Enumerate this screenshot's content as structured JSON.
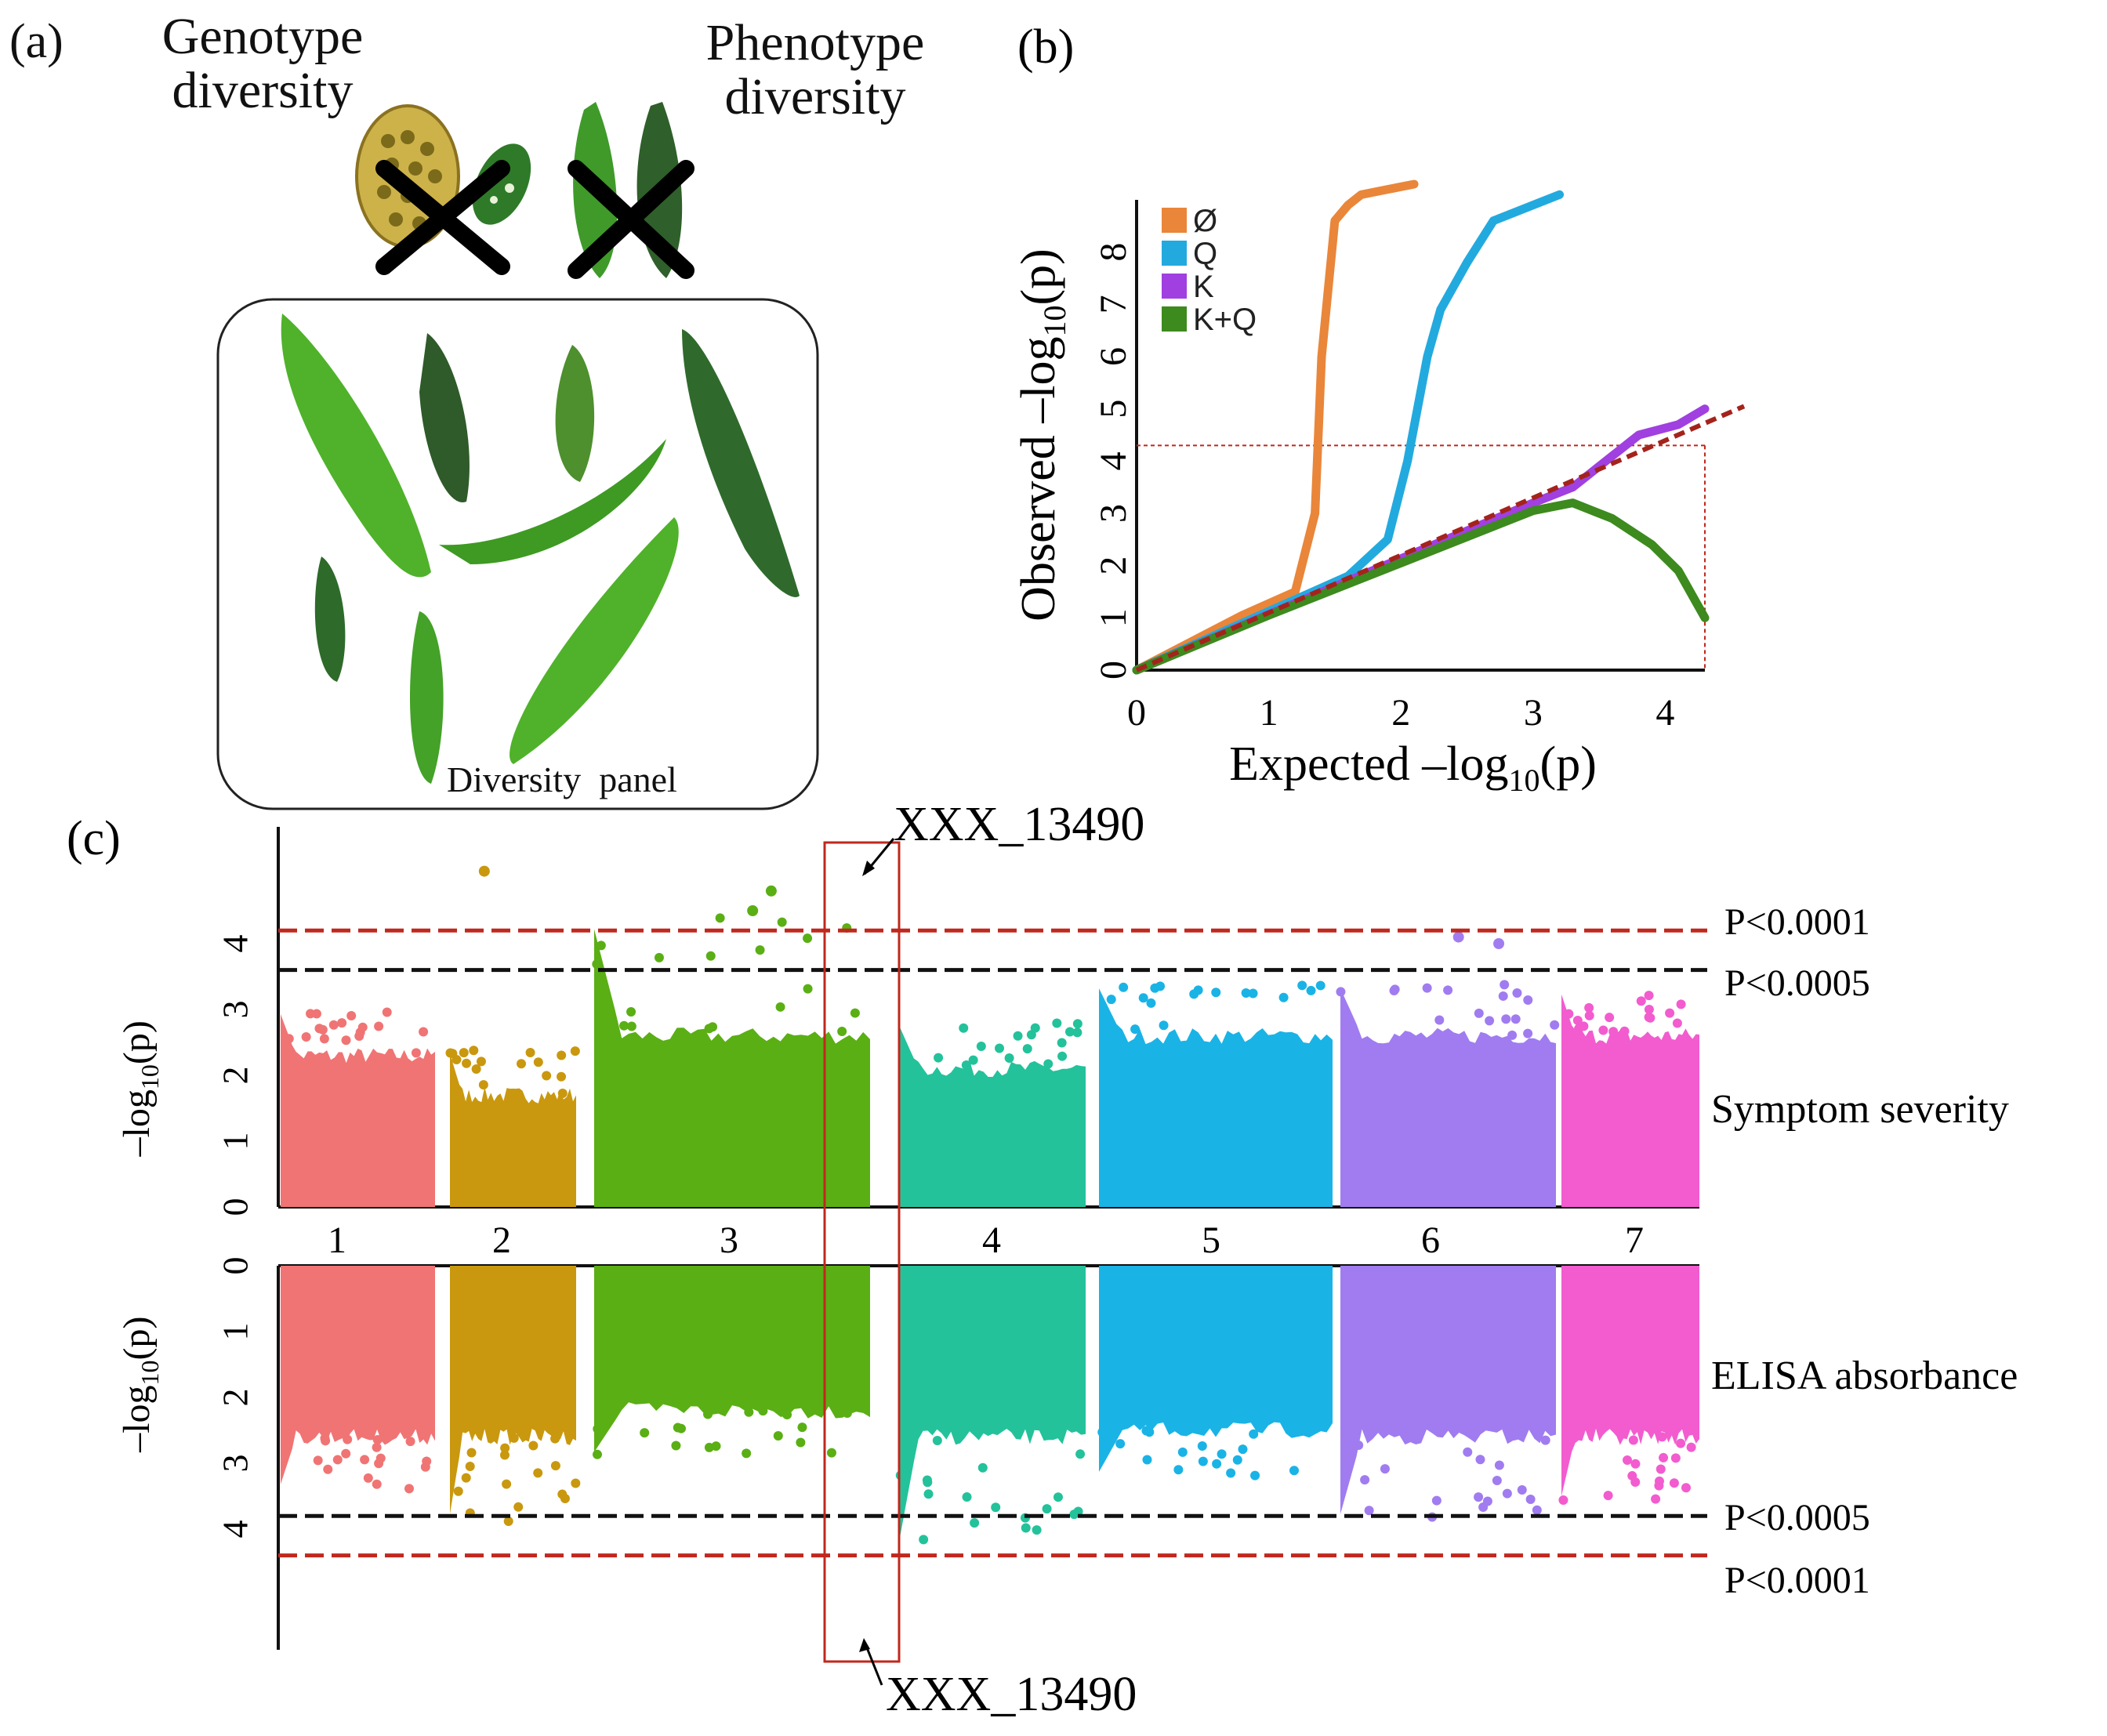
{
  "figure": {
    "panel_a": {
      "label": "(a)",
      "genotype_title": "Genotype diversity",
      "phenotype_title": "Phenotype diversity",
      "panel_caption": "Diversity  panel"
    },
    "panel_b": {
      "label": "(b)"
    },
    "panel_c": {
      "label": "(c)",
      "snp_top": "XXX_13490",
      "snp_bottom": "XXX_13490",
      "trait_top": "Symptom severity",
      "trait_bottom": "ELISA absorbance",
      "thr_top_red": "P<0.0001",
      "thr_top_black": "P<0.0005",
      "thr_bottom_black": "P<0.0005",
      "thr_bottom_red": "P<0.0001"
    }
  },
  "chart_data": [
    {
      "type": "scatter",
      "panel": "b",
      "title": "",
      "xlabel": "Expected –log10(p)",
      "ylabel": "Observed –log10(p)",
      "xlim": [
        0,
        4.3
      ],
      "ylim": [
        0,
        9
      ],
      "x_ticks": [
        "0",
        "1",
        "2",
        "3",
        "4"
      ],
      "y_ticks": [
        "0",
        "1",
        "2",
        "3",
        "4",
        "5",
        "6",
        "7",
        "8"
      ],
      "legend_position": "top-left",
      "diagonal_reference": true,
      "threshold_y": 4.3,
      "threshold_x": 4.3,
      "series": [
        {
          "name": "Ø",
          "color": "#e9863a",
          "x": [
            0,
            0.8,
            1.2,
            1.35,
            1.4,
            1.5,
            1.6,
            1.7,
            1.9,
            2.1
          ],
          "y": [
            0,
            1.05,
            1.5,
            3.0,
            6.0,
            8.6,
            8.9,
            9.1,
            9.2,
            9.3
          ]
        },
        {
          "name": "Q",
          "color": "#22aadf",
          "x": [
            0,
            1.6,
            1.9,
            2.05,
            2.2,
            2.3,
            2.5,
            2.7,
            3.2
          ],
          "y": [
            0,
            1.8,
            2.5,
            4.0,
            6.0,
            6.9,
            7.8,
            8.6,
            9.1
          ]
        },
        {
          "name": "K",
          "color": "#a040e0",
          "x": [
            0,
            3.0,
            3.3,
            3.8,
            4.1,
            4.3
          ],
          "y": [
            0,
            3.2,
            3.5,
            4.5,
            4.7,
            5.0
          ]
        },
        {
          "name": "K+Q",
          "color": "#3d8a1e",
          "x": [
            0,
            1.0,
            2.0,
            3.0,
            3.3,
            3.6,
            3.9,
            4.1,
            4.3
          ],
          "y": [
            0,
            1.05,
            2.05,
            3.05,
            3.2,
            2.9,
            2.4,
            1.9,
            1.0
          ]
        }
      ]
    },
    {
      "type": "scatter",
      "panel": "c-top",
      "subtype": "manhattan",
      "trait": "Symptom severity",
      "ylabel": "–log10(p)",
      "y_ticks": [
        "0",
        "1",
        "2",
        "3",
        "4"
      ],
      "ylim": [
        0,
        5.2
      ],
      "categories": [
        "1",
        "2",
        "3",
        "4",
        "5",
        "6",
        "7"
      ],
      "chromosome_colors": [
        "#f07474",
        "#c9980e",
        "#5aaf14",
        "#23c29b",
        "#1ab3e6",
        "#a07cf0",
        "#f25ccf"
      ],
      "chromosome_peaks": [
        3.0,
        2.4,
        4.4,
        2.8,
        3.4,
        3.4,
        3.3
      ],
      "outliers": [
        {
          "chr": "2",
          "y": 5.1
        },
        {
          "chr": "3",
          "y": 4.5
        },
        {
          "chr": "3",
          "y": 4.8
        },
        {
          "chr": "6",
          "y": 4.0
        },
        {
          "chr": "6",
          "y": 4.1
        }
      ],
      "threshold_lines": [
        {
          "label": "P<0.0001",
          "y": 4.2,
          "color": "#c0281e"
        },
        {
          "label": "P<0.0005",
          "y": 3.6,
          "color": "#111111"
        }
      ]
    },
    {
      "type": "scatter",
      "panel": "c-bottom",
      "subtype": "manhattan",
      "trait": "ELISA absorbance",
      "ylabel": "–log10(p)",
      "y_ticks": [
        "0",
        "1",
        "2",
        "3",
        "4"
      ],
      "ylim": [
        0,
        5.5
      ],
      "categories": [
        "1",
        "2",
        "3",
        "4",
        "5",
        "6",
        "7"
      ],
      "chromosome_colors": [
        "#f07474",
        "#c9980e",
        "#5aaf14",
        "#23c29b",
        "#1ab3e6",
        "#a07cf0",
        "#f25ccf"
      ],
      "chromosome_peaks": [
        3.4,
        3.9,
        2.9,
        4.3,
        3.2,
        3.9,
        3.6
      ],
      "threshold_lines": [
        {
          "label": "P<0.0005",
          "y": 3.8,
          "color": "#111111"
        },
        {
          "label": "P<0.0001",
          "y": 4.4,
          "color": "#c0281e"
        }
      ]
    }
  ]
}
